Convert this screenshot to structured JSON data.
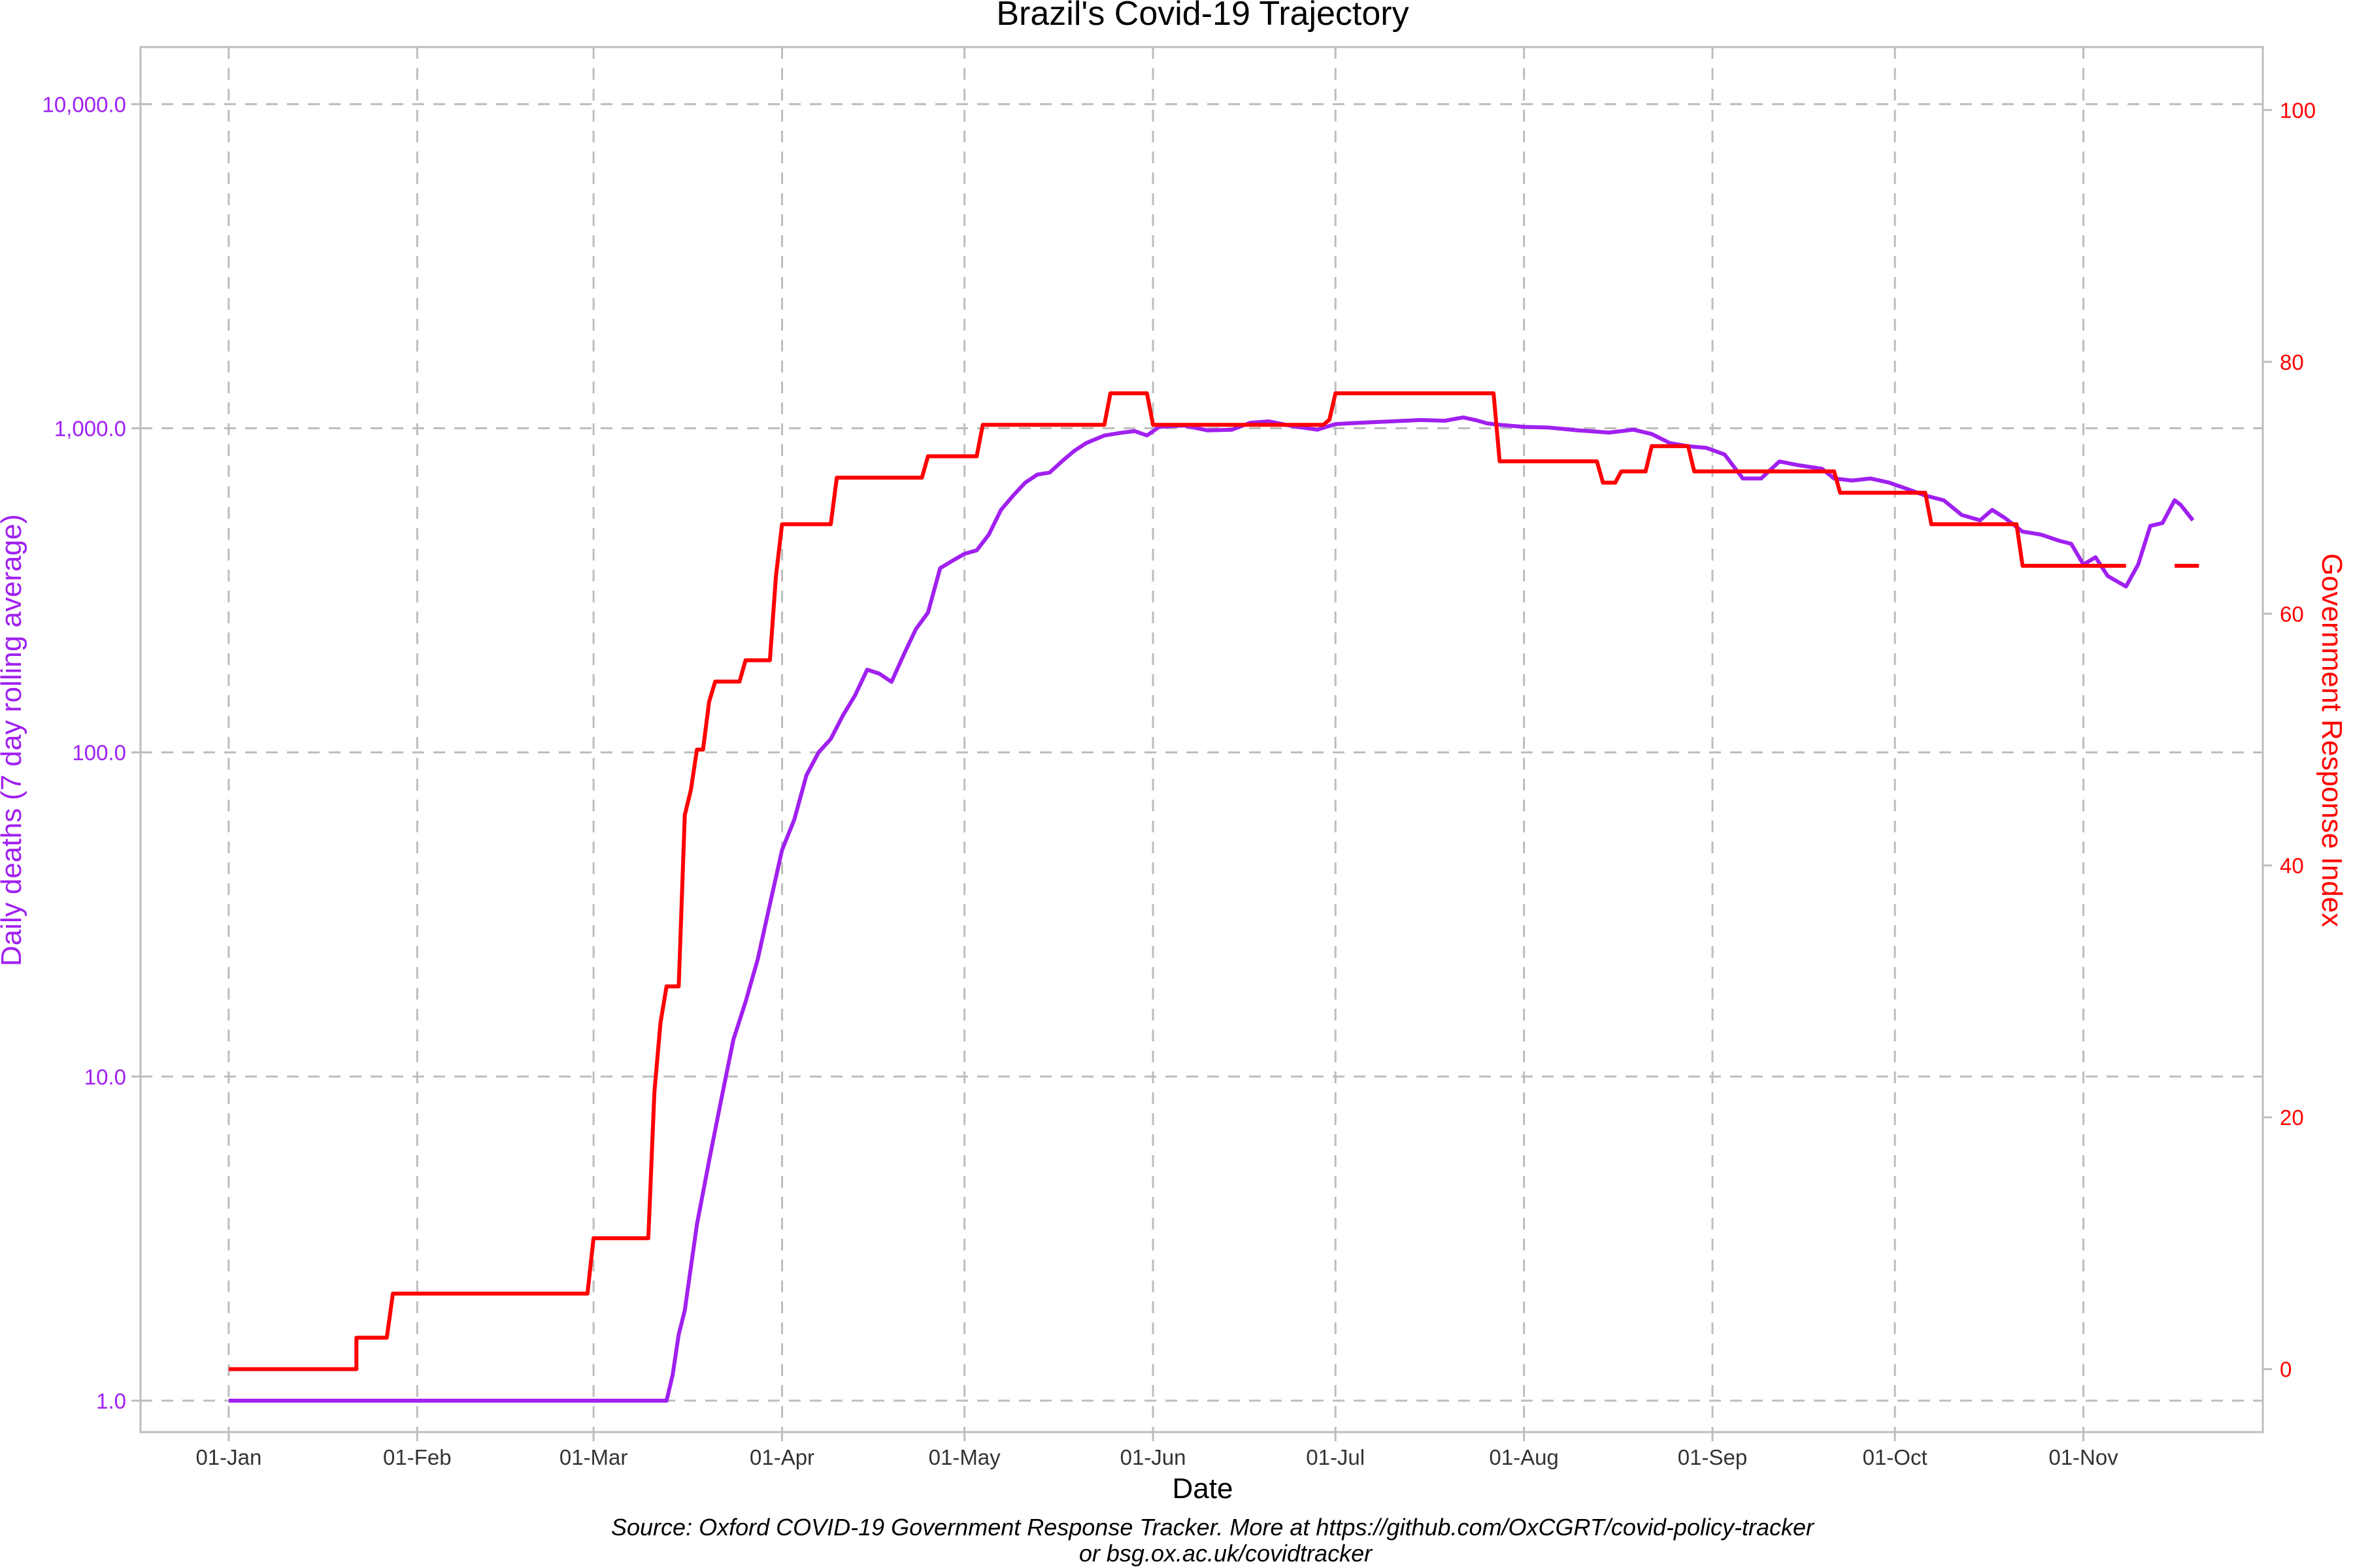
{
  "colors": {
    "deaths": "#a020f0",
    "stringency": "#ff0000",
    "grid": "#bdbdbd",
    "text": "#333333"
  },
  "chart_data": {
    "type": "line",
    "title": "Brazil's Covid-19 Trajectory",
    "xlabel": "Date",
    "ylabel_left": "Daily deaths (7 day rolling average)",
    "ylabel_right": "Government Response Index",
    "left_scale": "log10",
    "left_ylim": [
      0.8,
      15000
    ],
    "right_ylim": [
      -5,
      105
    ],
    "grid": true,
    "x_tick_labels": [
      "01-Jan",
      "01-Feb",
      "01-Mar",
      "01-Apr",
      "01-May",
      "01-Jun",
      "01-Jul",
      "01-Aug",
      "01-Sep",
      "01-Oct",
      "01-Nov"
    ],
    "x_tick_dates": [
      "2020-01-01",
      "2020-02-01",
      "2020-03-01",
      "2020-04-01",
      "2020-05-01",
      "2020-06-01",
      "2020-07-01",
      "2020-08-01",
      "2020-09-01",
      "2020-10-01",
      "2020-11-01"
    ],
    "left_ticks": [
      1,
      10,
      100,
      1000,
      10000
    ],
    "left_tick_labels": [
      "1.0",
      "10.0",
      "100.0",
      "1,000.0",
      "10,000.0"
    ],
    "right_ticks": [
      0,
      20,
      40,
      60,
      80,
      100
    ],
    "right_tick_labels": [
      "0",
      "20",
      "40",
      "60",
      "80",
      "100"
    ],
    "series": [
      {
        "axis": "left",
        "points": [
          [
            "2020-01-01",
            1
          ],
          [
            "2020-03-13",
            1
          ],
          [
            "2020-03-14",
            1.2
          ],
          [
            "2020-03-15",
            1.6
          ],
          [
            "2020-03-16",
            1.9
          ],
          [
            "2020-03-18",
            3.5
          ],
          [
            "2020-03-20",
            5.5
          ],
          [
            "2020-03-22",
            8.5
          ],
          [
            "2020-03-24",
            13
          ],
          [
            "2020-03-26",
            17
          ],
          [
            "2020-03-28",
            23
          ],
          [
            "2020-03-30",
            34
          ],
          [
            "2020-04-01",
            50
          ],
          [
            "2020-04-03",
            62
          ],
          [
            "2020-04-05",
            85
          ],
          [
            "2020-04-07",
            100
          ],
          [
            "2020-04-09",
            110
          ],
          [
            "2020-04-11",
            130
          ],
          [
            "2020-04-13",
            150
          ],
          [
            "2020-04-15",
            180
          ],
          [
            "2020-04-17",
            175
          ],
          [
            "2020-04-19",
            165
          ],
          [
            "2020-04-21",
            200
          ],
          [
            "2020-04-23",
            240
          ],
          [
            "2020-04-25",
            270
          ],
          [
            "2020-04-27",
            370
          ],
          [
            "2020-04-29",
            390
          ],
          [
            "2020-05-01",
            410
          ],
          [
            "2020-05-03",
            420
          ],
          [
            "2020-05-05",
            470
          ],
          [
            "2020-05-07",
            560
          ],
          [
            "2020-05-09",
            620
          ],
          [
            "2020-05-11",
            680
          ],
          [
            "2020-05-13",
            720
          ],
          [
            "2020-05-15",
            730
          ],
          [
            "2020-05-17",
            790
          ],
          [
            "2020-05-19",
            850
          ],
          [
            "2020-05-21",
            900
          ],
          [
            "2020-05-24",
            950
          ],
          [
            "2020-05-27",
            970
          ],
          [
            "2020-05-29",
            980
          ],
          [
            "2020-05-31",
            950
          ],
          [
            "2020-06-02",
            1010
          ],
          [
            "2020-06-06",
            1020
          ],
          [
            "2020-06-10",
            985
          ],
          [
            "2020-06-14",
            990
          ],
          [
            "2020-06-17",
            1040
          ],
          [
            "2020-06-20",
            1050
          ],
          [
            "2020-06-24",
            1015
          ],
          [
            "2020-06-28",
            990
          ],
          [
            "2020-07-01",
            1030
          ],
          [
            "2020-07-05",
            1040
          ],
          [
            "2020-07-10",
            1050
          ],
          [
            "2020-07-15",
            1060
          ],
          [
            "2020-07-19",
            1055
          ],
          [
            "2020-07-22",
            1080
          ],
          [
            "2020-07-24",
            1060
          ],
          [
            "2020-07-26",
            1035
          ],
          [
            "2020-07-28",
            1025
          ],
          [
            "2020-08-01",
            1010
          ],
          [
            "2020-08-05",
            1005
          ],
          [
            "2020-08-10",
            985
          ],
          [
            "2020-08-15",
            970
          ],
          [
            "2020-08-19",
            990
          ],
          [
            "2020-08-22",
            960
          ],
          [
            "2020-08-25",
            900
          ],
          [
            "2020-08-28",
            880
          ],
          [
            "2020-08-31",
            870
          ],
          [
            "2020-09-03",
            830
          ],
          [
            "2020-09-06",
            700
          ],
          [
            "2020-09-09",
            700
          ],
          [
            "2020-09-12",
            790
          ],
          [
            "2020-09-15",
            770
          ],
          [
            "2020-09-19",
            750
          ],
          [
            "2020-09-21",
            700
          ],
          [
            "2020-09-24",
            690
          ],
          [
            "2020-09-27",
            700
          ],
          [
            "2020-09-30",
            680
          ],
          [
            "2020-10-03",
            650
          ],
          [
            "2020-10-06",
            620
          ],
          [
            "2020-10-09",
            600
          ],
          [
            "2020-10-12",
            540
          ],
          [
            "2020-10-15",
            520
          ],
          [
            "2020-10-17",
            560
          ],
          [
            "2020-10-19",
            530
          ],
          [
            "2020-10-22",
            480
          ],
          [
            "2020-10-25",
            470
          ],
          [
            "2020-10-28",
            450
          ],
          [
            "2020-10-30",
            440
          ],
          [
            "2020-11-01",
            380
          ],
          [
            "2020-11-03",
            400
          ],
          [
            "2020-11-05",
            350
          ],
          [
            "2020-11-08",
            325
          ],
          [
            "2020-11-10",
            380
          ],
          [
            "2020-11-12",
            500
          ],
          [
            "2020-11-14",
            510
          ],
          [
            "2020-11-16",
            600
          ],
          [
            "2020-11-17",
            580
          ],
          [
            "2020-11-19",
            520
          ]
        ]
      },
      {
        "axis": "right",
        "points": [
          [
            "2020-01-01",
            0
          ],
          [
            "2020-01-22",
            0
          ],
          [
            "2020-01-22",
            2.5
          ],
          [
            "2020-01-27",
            2.5
          ],
          [
            "2020-01-28",
            6
          ],
          [
            "2020-02-29",
            6
          ],
          [
            "2020-03-01",
            10.4
          ],
          [
            "2020-03-10",
            10.4
          ],
          [
            "2020-03-11",
            22
          ],
          [
            "2020-03-12",
            27.5
          ],
          [
            "2020-03-13",
            30.4
          ],
          [
            "2020-03-15",
            30.4
          ],
          [
            "2020-03-16",
            44
          ],
          [
            "2020-03-17",
            46
          ],
          [
            "2020-03-18",
            49.2
          ],
          [
            "2020-03-19",
            49.2
          ],
          [
            "2020-03-20",
            53
          ],
          [
            "2020-03-21",
            54.6
          ],
          [
            "2020-03-25",
            54.6
          ],
          [
            "2020-03-26",
            56.3
          ],
          [
            "2020-03-30",
            56.3
          ],
          [
            "2020-03-31",
            63
          ],
          [
            "2020-04-01",
            67.1
          ],
          [
            "2020-04-09",
            67.1
          ],
          [
            "2020-04-10",
            70.8
          ],
          [
            "2020-04-24",
            70.8
          ],
          [
            "2020-04-25",
            72.5
          ],
          [
            "2020-05-03",
            72.5
          ],
          [
            "2020-05-04",
            75
          ],
          [
            "2020-05-24",
            75
          ],
          [
            "2020-05-25",
            77.5
          ],
          [
            "2020-05-31",
            77.5
          ],
          [
            "2020-06-01",
            75
          ],
          [
            "2020-06-29",
            75
          ],
          [
            "2020-06-30",
            75.4
          ],
          [
            "2020-07-01",
            77.5
          ],
          [
            "2020-07-27",
            77.5
          ],
          [
            "2020-07-28",
            72.1
          ],
          [
            "2020-08-13",
            72.1
          ],
          [
            "2020-08-14",
            70.4
          ],
          [
            "2020-08-16",
            70.4
          ],
          [
            "2020-08-17",
            71.3
          ],
          [
            "2020-08-21",
            71.3
          ],
          [
            "2020-08-22",
            73.3
          ],
          [
            "2020-08-28",
            73.3
          ],
          [
            "2020-08-29",
            71.3
          ],
          [
            "2020-09-21",
            71.3
          ],
          [
            "2020-09-22",
            69.6
          ],
          [
            "2020-10-06",
            69.6
          ],
          [
            "2020-10-07",
            67.1
          ],
          [
            "2020-10-21",
            67.1
          ],
          [
            "2020-10-22",
            63.8
          ],
          [
            "2020-11-08",
            63.8
          ],
          [
            "2020-11-09",
            null
          ],
          [
            "2020-11-15",
            null
          ],
          [
            "2020-11-16",
            63.8
          ],
          [
            "2020-11-20",
            63.8
          ]
        ]
      }
    ]
  },
  "caption": {
    "line1": "Source: Oxford COVID-19 Government Response Tracker. More at https://github.com/OxCGRT/covid-policy-tracker",
    "line2": "or bsg.ox.ac.uk/covidtracker"
  }
}
